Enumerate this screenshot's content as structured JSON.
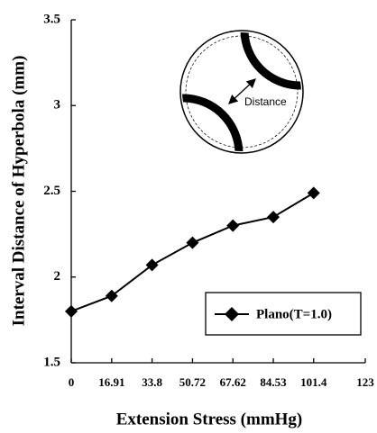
{
  "chart_data": {
    "type": "line",
    "x_label": "Extension Stress (mmHg)",
    "y_label": "Interval Distance of Hyperbola (mm)",
    "annotation": "Distance",
    "x": [
      0,
      16.91,
      33.8,
      50.72,
      67.62,
      84.53,
      101.4
    ],
    "series": [
      {
        "name": "Plano(T=1.0)",
        "color": "#000000",
        "values": [
          1.8,
          1.89,
          2.07,
          2.2,
          2.3,
          2.35,
          2.49
        ]
      }
    ],
    "xlim": [
      0,
      123
    ],
    "xticks": [
      0,
      16.91,
      33.8,
      50.72,
      67.62,
      84.53,
      101.4,
      123
    ],
    "ylim": [
      1.5,
      3.5
    ],
    "yticks": [
      1.5,
      2,
      2.5,
      3,
      3.5
    ],
    "legend": "lower right"
  }
}
